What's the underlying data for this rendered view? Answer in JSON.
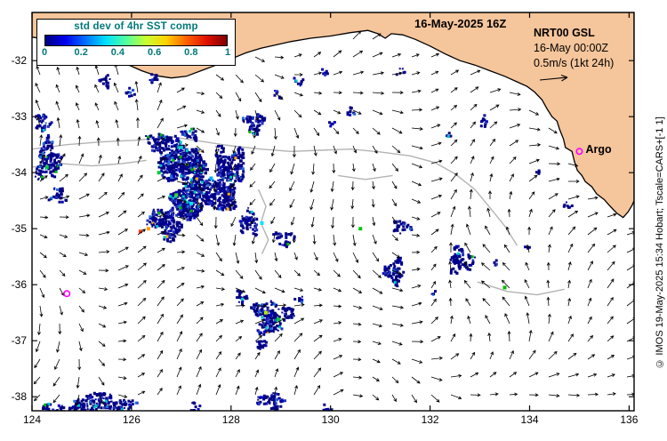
{
  "header": {
    "datetime_label": "16-May-2025 16Z"
  },
  "colorbar": {
    "title": "std dev of 4hr SST comp",
    "title_color": "#007878",
    "tick_labels": [
      "0",
      "0.2",
      "0.4",
      "0.6",
      "0.8",
      "1"
    ],
    "gradient_stops": [
      "#00007f",
      "#0000f0",
      "#0070ff",
      "#00e0ff",
      "#50ff9f",
      "#c8ff30",
      "#ffd000",
      "#ff6000",
      "#e01000",
      "#7f0000"
    ]
  },
  "legend": {
    "model_label": "NRT00 GSL",
    "time_label": "16-May 00:00Z",
    "scale_label": "0.5m/s (1kt 24h)"
  },
  "argo": {
    "label": "Argo",
    "lon": 135.0,
    "lat": -33.62,
    "marker_color": "#ff00ff"
  },
  "credit": "© IMOS 19-May-2025 15:34 Hobart; Tscale=CARS+[-1 1]",
  "axes": {
    "lon_min": 124,
    "lon_max": 136.1,
    "lat_min": -38.25,
    "lat_max": -31.14,
    "x_tick_values": [
      124,
      126,
      128,
      130,
      132,
      134,
      136
    ],
    "x_tick_labels": [
      "124",
      "126",
      "128",
      "130",
      "132",
      "134",
      "136"
    ],
    "y_tick_values": [
      -32,
      -33,
      -34,
      -35,
      -36,
      -37,
      -38
    ],
    "y_tick_labels": [
      "-32",
      "-33",
      "-34",
      "-35",
      "-36",
      "-37",
      "-38"
    ]
  },
  "chart_data": {
    "type": "heatmap",
    "title": "std dev of 4hr SST comp",
    "colorbar_range": [
      0,
      1
    ],
    "colorbar_ticks": [
      0,
      0.2,
      0.4,
      0.6,
      0.8,
      1
    ],
    "x_range": [
      124,
      136.1
    ],
    "y_range": [
      -38.25,
      -31.14
    ],
    "overlays": [
      "current vector field 0.5m/s (1kt 24h)",
      "bathymetry contours",
      "Argo float markers"
    ]
  },
  "map": {
    "land_color": "#f5c59b",
    "coast": [
      [
        124.0,
        -31.58
      ],
      [
        124.35,
        -31.63
      ],
      [
        124.7,
        -31.7
      ],
      [
        125.0,
        -31.76
      ],
      [
        125.3,
        -31.86
      ],
      [
        125.6,
        -31.96
      ],
      [
        125.9,
        -32.06
      ],
      [
        126.2,
        -32.18
      ],
      [
        126.5,
        -32.27
      ],
      [
        126.8,
        -32.31
      ],
      [
        127.1,
        -32.28
      ],
      [
        127.4,
        -32.18
      ],
      [
        127.7,
        -32.08
      ],
      [
        128.0,
        -31.97
      ],
      [
        128.3,
        -31.86
      ],
      [
        128.6,
        -31.78
      ],
      [
        128.9,
        -31.72
      ],
      [
        129.2,
        -31.66
      ],
      [
        129.6,
        -31.6
      ],
      [
        130.0,
        -31.56
      ],
      [
        130.4,
        -31.5
      ],
      [
        130.75,
        -31.46
      ],
      [
        130.95,
        -31.52
      ],
      [
        131.1,
        -31.6
      ],
      [
        131.22,
        -31.52
      ],
      [
        131.45,
        -31.54
      ],
      [
        131.7,
        -31.62
      ],
      [
        132.0,
        -31.74
      ],
      [
        132.3,
        -31.88
      ],
      [
        132.6,
        -32.0
      ],
      [
        132.9,
        -32.08
      ],
      [
        133.2,
        -32.18
      ],
      [
        133.5,
        -32.28
      ],
      [
        133.75,
        -32.38
      ],
      [
        133.95,
        -32.46
      ],
      [
        134.1,
        -32.56
      ],
      [
        134.25,
        -32.7
      ],
      [
        134.35,
        -32.86
      ],
      [
        134.45,
        -33.0
      ],
      [
        134.55,
        -33.08
      ],
      [
        134.6,
        -33.22
      ],
      [
        134.68,
        -33.4
      ],
      [
        134.72,
        -33.55
      ],
      [
        134.85,
        -33.62
      ],
      [
        134.9,
        -33.8
      ],
      [
        134.96,
        -33.96
      ],
      [
        135.05,
        -34.05
      ],
      [
        135.12,
        -34.16
      ],
      [
        135.25,
        -34.25
      ],
      [
        135.35,
        -34.38
      ],
      [
        135.5,
        -34.48
      ],
      [
        135.62,
        -34.6
      ],
      [
        135.75,
        -34.72
      ],
      [
        135.88,
        -34.8
      ],
      [
        135.98,
        -34.7
      ],
      [
        136.06,
        -34.58
      ],
      [
        136.1,
        -34.5
      ]
    ],
    "contours": [
      [
        [
          124.0,
          -33.58
        ],
        [
          124.7,
          -33.5
        ],
        [
          125.4,
          -33.45
        ],
        [
          126.1,
          -33.42
        ],
        [
          126.8,
          -33.36
        ],
        [
          127.4,
          -33.44
        ],
        [
          128.0,
          -33.52
        ],
        [
          128.6,
          -33.58
        ],
        [
          129.2,
          -33.62
        ],
        [
          129.8,
          -33.6
        ],
        [
          130.4,
          -33.58
        ],
        [
          131.0,
          -33.63
        ],
        [
          131.6,
          -33.7
        ],
        [
          132.1,
          -33.82
        ],
        [
          132.5,
          -34.02
        ],
        [
          132.9,
          -34.3
        ],
        [
          133.2,
          -34.62
        ],
        [
          133.5,
          -34.95
        ],
        [
          133.75,
          -35.3
        ]
      ],
      [
        [
          124.0,
          -33.9
        ],
        [
          124.6,
          -33.84
        ],
        [
          125.2,
          -33.88
        ],
        [
          125.8,
          -33.84
        ],
        [
          126.3,
          -33.78
        ]
      ],
      [
        [
          128.55,
          -34.3
        ],
        [
          128.7,
          -34.6
        ],
        [
          128.6,
          -34.9
        ],
        [
          128.75,
          -35.2
        ],
        [
          128.62,
          -35.45
        ]
      ],
      [
        [
          130.15,
          -34.05
        ],
        [
          130.7,
          -34.12
        ],
        [
          131.25,
          -34.05
        ]
      ],
      [
        [
          132.95,
          -35.95
        ],
        [
          133.55,
          -36.12
        ],
        [
          134.15,
          -36.18
        ],
        [
          134.7,
          -36.08
        ]
      ]
    ],
    "patches": [
      {
        "lon": 126.95,
        "lat": -33.75,
        "w": 1.25,
        "h": 0.85,
        "d": 0.85
      },
      {
        "lon": 127.35,
        "lat": -34.35,
        "w": 1.55,
        "h": 1.05,
        "d": 0.9
      },
      {
        "lon": 126.7,
        "lat": -34.85,
        "w": 0.95,
        "h": 0.75,
        "d": 0.75
      },
      {
        "lon": 127.95,
        "lat": -33.95,
        "w": 0.75,
        "h": 1.15,
        "d": 0.8
      },
      {
        "lon": 126.5,
        "lat": -33.45,
        "w": 0.55,
        "h": 0.45,
        "d": 0.7
      },
      {
        "lon": 127.15,
        "lat": -33.28,
        "w": 0.4,
        "h": 0.3,
        "d": 0.6
      },
      {
        "lon": 128.35,
        "lat": -34.85,
        "w": 0.5,
        "h": 0.6,
        "d": 0.55
      },
      {
        "lon": 129.05,
        "lat": -35.15,
        "w": 0.5,
        "h": 0.35,
        "d": 0.5
      },
      {
        "lon": 124.3,
        "lat": -33.75,
        "w": 0.6,
        "h": 0.9,
        "d": 0.7
      },
      {
        "lon": 124.2,
        "lat": -33.1,
        "w": 0.4,
        "h": 0.4,
        "d": 0.6
      },
      {
        "lon": 124.5,
        "lat": -34.4,
        "w": 0.4,
        "h": 0.4,
        "d": 0.5
      },
      {
        "lon": 125.45,
        "lat": -32.35,
        "w": 0.3,
        "h": 0.25,
        "d": 0.6
      },
      {
        "lon": 125.95,
        "lat": -32.55,
        "w": 0.25,
        "h": 0.2,
        "d": 0.5
      },
      {
        "lon": 126.4,
        "lat": -32.3,
        "w": 0.3,
        "h": 0.25,
        "d": 0.55
      },
      {
        "lon": 128.45,
        "lat": -33.1,
        "w": 0.5,
        "h": 0.5,
        "d": 0.75
      },
      {
        "lon": 128.9,
        "lat": -32.6,
        "w": 0.2,
        "h": 0.2,
        "d": 0.5
      },
      {
        "lon": 129.35,
        "lat": -32.35,
        "w": 0.25,
        "h": 0.2,
        "d": 0.5
      },
      {
        "lon": 129.85,
        "lat": -32.2,
        "w": 0.22,
        "h": 0.15,
        "d": 0.5
      },
      {
        "lon": 130.4,
        "lat": -32.9,
        "w": 0.25,
        "h": 0.2,
        "d": 0.5
      },
      {
        "lon": 131.4,
        "lat": -32.2,
        "w": 0.3,
        "h": 0.15,
        "d": 0.45
      },
      {
        "lon": 130.0,
        "lat": -33.1,
        "w": 0.2,
        "h": 0.15,
        "d": 0.4
      },
      {
        "lon": 133.05,
        "lat": -33.1,
        "w": 0.18,
        "h": 0.3,
        "d": 0.5
      },
      {
        "lon": 132.35,
        "lat": -33.3,
        "w": 0.15,
        "h": 0.15,
        "d": 0.45
      },
      {
        "lon": 131.4,
        "lat": -34.95,
        "w": 0.45,
        "h": 0.3,
        "d": 0.6
      },
      {
        "lon": 131.25,
        "lat": -35.75,
        "w": 0.55,
        "h": 0.55,
        "d": 0.65
      },
      {
        "lon": 132.6,
        "lat": -35.55,
        "w": 0.65,
        "h": 0.55,
        "d": 0.6
      },
      {
        "lon": 133.3,
        "lat": -35.6,
        "w": 0.15,
        "h": 0.15,
        "d": 0.5
      },
      {
        "lon": 133.95,
        "lat": -35.3,
        "w": 0.15,
        "h": 0.15,
        "d": 0.5
      },
      {
        "lon": 132.05,
        "lat": -36.15,
        "w": 0.15,
        "h": 0.15,
        "d": 0.45
      },
      {
        "lon": 128.8,
        "lat": -36.55,
        "w": 0.95,
        "h": 0.75,
        "d": 0.7
      },
      {
        "lon": 128.2,
        "lat": -36.2,
        "w": 0.35,
        "h": 0.3,
        "d": 0.55
      },
      {
        "lon": 128.6,
        "lat": -37.05,
        "w": 0.35,
        "h": 0.3,
        "d": 0.5
      },
      {
        "lon": 129.35,
        "lat": -36.25,
        "w": 0.2,
        "h": 0.2,
        "d": 0.45
      },
      {
        "lon": 125.35,
        "lat": -38.1,
        "w": 1.7,
        "h": 0.4,
        "d": 0.65
      },
      {
        "lon": 124.4,
        "lat": -38.2,
        "w": 0.6,
        "h": 0.25,
        "d": 0.6
      },
      {
        "lon": 127.25,
        "lat": -38.2,
        "w": 0.35,
        "h": 0.25,
        "d": 0.5
      },
      {
        "lon": 128.8,
        "lat": -38.05,
        "w": 0.75,
        "h": 0.35,
        "d": 0.6
      },
      {
        "lon": 129.9,
        "lat": -38.2,
        "w": 0.3,
        "h": 0.2,
        "d": 0.5
      },
      {
        "lon": 134.75,
        "lat": -34.55,
        "w": 0.2,
        "h": 0.15,
        "d": 0.6
      },
      {
        "lon": 134.15,
        "lat": -33.95,
        "w": 0.15,
        "h": 0.15,
        "d": 0.5
      }
    ],
    "specks": [
      {
        "lon": 126.18,
        "lat": -35.05,
        "c": "#ff3300"
      },
      {
        "lon": 126.34,
        "lat": -35.0,
        "c": "#ff9900"
      },
      {
        "lon": 126.55,
        "lat": -34.0,
        "c": "#00cc33"
      },
      {
        "lon": 127.2,
        "lat": -34.55,
        "c": "#00e5ff"
      },
      {
        "lon": 128.62,
        "lat": -34.9,
        "c": "#00e5ff"
      },
      {
        "lon": 128.7,
        "lat": -36.5,
        "c": "#aaee00"
      },
      {
        "lon": 128.95,
        "lat": -36.62,
        "c": "#00cc33"
      },
      {
        "lon": 127.0,
        "lat": -33.55,
        "c": "#00cccc"
      },
      {
        "lon": 133.5,
        "lat": -36.05,
        "c": "#00bb00"
      },
      {
        "lon": 126.9,
        "lat": -34.4,
        "c": "#33dd33"
      },
      {
        "lon": 127.6,
        "lat": -34.1,
        "c": "#00aaff"
      },
      {
        "lon": 124.3,
        "lat": -33.9,
        "c": "#00cc44"
      },
      {
        "lon": 130.6,
        "lat": -35.0,
        "c": "#00c800"
      }
    ],
    "float_marker": {
      "lon": 124.7,
      "lat": -36.16
    }
  }
}
